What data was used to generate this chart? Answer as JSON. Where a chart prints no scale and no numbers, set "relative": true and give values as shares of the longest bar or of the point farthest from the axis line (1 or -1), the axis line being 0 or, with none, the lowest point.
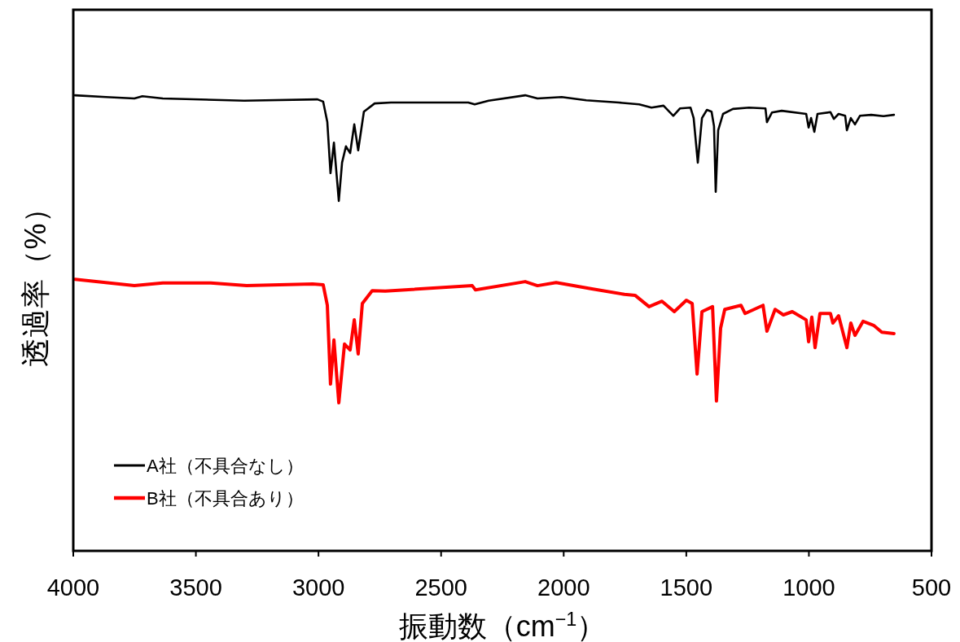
{
  "chart_data": {
    "type": "line",
    "xlabel": "振動数（cm$^{−1}$）",
    "ylabel": "透過率（%）",
    "relative": true,
    "xlim": [
      4000,
      500
    ],
    "xticks": [
      4000,
      3500,
      3000,
      2500,
      2000,
      1500,
      1000,
      500
    ],
    "grid": false,
    "legend": "bottom left",
    "marker": "none",
    "line_style": "solid",
    "series": [
      {
        "name": "A社（不具合なし）",
        "color": "#000000",
        "x": [
          3993,
          3867,
          3751,
          3718,
          3635,
          3303,
          3004,
          2981,
          2964,
          2951,
          2937,
          2917,
          2904,
          2888,
          2871,
          2854,
          2838,
          2815,
          2771,
          2705,
          2389,
          2363,
          2306,
          2157,
          2107,
          2008,
          1908,
          1775,
          1692,
          1642,
          1593,
          1553,
          1526,
          1483,
          1470,
          1453,
          1436,
          1416,
          1397,
          1387,
          1380,
          1370,
          1350,
          1310,
          1244,
          1177,
          1171,
          1151,
          1111,
          1011,
          1001,
          991,
          978,
          965,
          912,
          898,
          879,
          852,
          845,
          829,
          812,
          792,
          746,
          696,
          653
        ],
        "values": [
          1.0,
          0.996,
          0.993,
          0.998,
          0.993,
          0.988,
          0.991,
          0.986,
          0.941,
          0.829,
          0.896,
          0.768,
          0.852,
          0.888,
          0.873,
          0.936,
          0.879,
          0.964,
          0.982,
          0.984,
          0.984,
          0.98,
          0.988,
          1.0,
          0.993,
          0.996,
          0.989,
          0.984,
          0.98,
          0.973,
          0.977,
          0.955,
          0.971,
          0.973,
          0.95,
          0.852,
          0.95,
          0.968,
          0.964,
          0.932,
          0.788,
          0.923,
          0.959,
          0.97,
          0.973,
          0.971,
          0.941,
          0.962,
          0.966,
          0.959,
          0.929,
          0.95,
          0.92,
          0.959,
          0.963,
          0.948,
          0.959,
          0.955,
          0.923,
          0.95,
          0.936,
          0.955,
          0.957,
          0.954,
          0.957
        ]
      },
      {
        "name": "B社（不具合あり）",
        "color": "#ff0000",
        "x": [
          3993,
          3751,
          3635,
          3439,
          3293,
          3024,
          2981,
          2964,
          2951,
          2937,
          2917,
          2894,
          2871,
          2854,
          2838,
          2821,
          2781,
          2728,
          2373,
          2360,
          2157,
          2107,
          2031,
          1885,
          1752,
          1709,
          1652,
          1599,
          1549,
          1500,
          1476,
          1456,
          1436,
          1393,
          1377,
          1360,
          1343,
          1277,
          1260,
          1187,
          1171,
          1138,
          1104,
          1068,
          1011,
          1001,
          988,
          975,
          955,
          912,
          902,
          879,
          845,
          829,
          812,
          779,
          736,
          703,
          653
        ],
        "values": [
          0.596,
          0.582,
          0.588,
          0.588,
          0.582,
          0.586,
          0.584,
          0.539,
          0.366,
          0.463,
          0.325,
          0.454,
          0.441,
          0.507,
          0.432,
          0.543,
          0.571,
          0.57,
          0.582,
          0.573,
          0.591,
          0.582,
          0.589,
          0.575,
          0.563,
          0.561,
          0.536,
          0.548,
          0.525,
          0.55,
          0.543,
          0.388,
          0.525,
          0.536,
          0.329,
          0.489,
          0.53,
          0.539,
          0.521,
          0.539,
          0.482,
          0.53,
          0.518,
          0.525,
          0.507,
          0.459,
          0.513,
          0.446,
          0.521,
          0.521,
          0.5,
          0.516,
          0.446,
          0.5,
          0.473,
          0.504,
          0.495,
          0.48,
          0.477
        ]
      }
    ]
  }
}
